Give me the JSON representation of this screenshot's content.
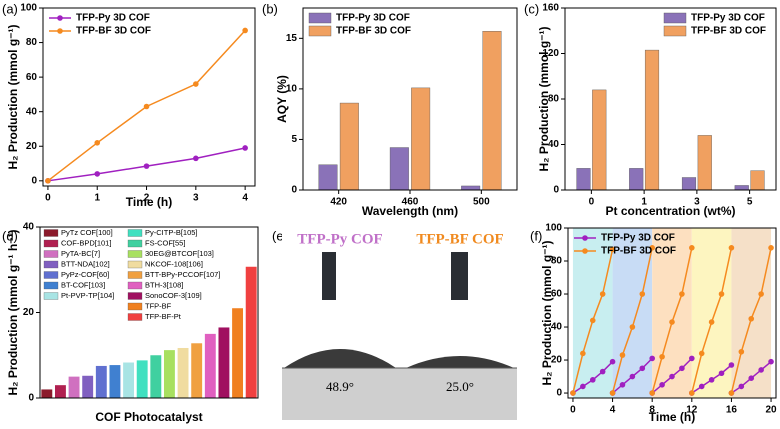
{
  "chart_data": [
    {
      "type": "line",
      "panel_label": "(a)",
      "x_label": "Time (h)",
      "y_label": "H₂ Production (mmol g⁻¹)",
      "x": [
        0,
        1,
        2,
        3,
        4
      ],
      "xlim": [
        -0.1,
        4.2
      ],
      "xticks": [
        0,
        1,
        2,
        3,
        4
      ],
      "ylim": [
        -3,
        100
      ],
      "yticks": [
        0,
        20,
        40,
        60,
        80,
        100
      ],
      "legend": "upper left",
      "series": [
        {
          "name": "TFP-Py 3D COF",
          "color": "#a020c0",
          "values": [
            0,
            4,
            8.5,
            13,
            19
          ]
        },
        {
          "name": "TFP-BF 3D COF",
          "color": "#f58a1f",
          "values": [
            0,
            22,
            43,
            56,
            87
          ]
        }
      ]
    },
    {
      "type": "bar",
      "panel_label": "(b)",
      "x_label": "Wavelength (nm)",
      "y_label": "AQY (%)",
      "categories": [
        "420",
        "460",
        "500"
      ],
      "ylim": [
        0,
        18
      ],
      "yticks": [
        0,
        5,
        10,
        15
      ],
      "legend": "upper left",
      "series": [
        {
          "name": "TFP-Py 3D COF",
          "color": "#8a72b8",
          "values": [
            2.5,
            4.2,
            0.4
          ]
        },
        {
          "name": "TFP-BF 3D COF",
          "color": "#f0a060",
          "values": [
            8.6,
            10.1,
            15.7
          ]
        }
      ]
    },
    {
      "type": "bar",
      "panel_label": "(c)",
      "x_label": "Pt concentration (wt%)",
      "y_label": "H₂ Production (mmol g⁻¹)",
      "categories": [
        "0",
        "1",
        "3",
        "5"
      ],
      "ylim": [
        0,
        160
      ],
      "yticks": [
        0,
        40,
        80,
        120,
        160
      ],
      "legend": "upper right",
      "series": [
        {
          "name": "TFP-Py 3D COF",
          "color": "#8a72b8",
          "values": [
            19,
            19,
            11,
            4
          ]
        },
        {
          "name": "TFP-BF 3D COF",
          "color": "#f0a060",
          "values": [
            88,
            123,
            48,
            17
          ]
        }
      ]
    },
    {
      "type": "bar",
      "panel_label": "(d)",
      "x_label": "COF Photocatalyst",
      "y_label": "H₂ Production (mmol g⁻¹ h⁻¹)",
      "categories": [
        "PyTz COF[100]",
        "COF-BPD[101]",
        "PyTA-BC[7]",
        "BTT-NDA[102]",
        "PyPz-COF[60]",
        "BT-COF[103]",
        "Pt-PVP-TP[104]",
        "Py-CITP-B[105]",
        "FS-COF[55]",
        "30EG@BTCOF[103]",
        "NKCOF-108[106]",
        "BTT-BPy-PCCOF[107]",
        "BTH-3[108]",
        "SonoCOF-3[109]",
        "TFP-BF",
        "TFP-BF-Pt"
      ],
      "values": [
        2,
        3,
        5,
        5.2,
        7.5,
        7.7,
        8.3,
        8.8,
        10,
        11.2,
        11.7,
        12.8,
        15,
        16.5,
        21,
        30.7
      ],
      "colors": [
        "#8b1a2b",
        "#b02050",
        "#d070c0",
        "#8060c0",
        "#6070d0",
        "#4080d0",
        "#a8e4e4",
        "#40e0c0",
        "#40d0a0",
        "#a8e060",
        "#f0dca0",
        "#f0a040",
        "#e060c0",
        "#a01060",
        "#f08020",
        "#f04040"
      ],
      "ylim": [
        0,
        40
      ],
      "yticks": [
        0,
        20,
        40
      ]
    },
    {
      "type": "line",
      "panel_label": "(f)",
      "x_label": "Time (h)",
      "y_label": "H₂ Production (mmol g⁻¹)",
      "x": [
        0,
        1,
        2,
        3,
        4,
        4,
        4,
        5,
        6,
        7,
        8,
        8,
        8,
        9,
        10,
        11,
        12,
        12,
        12,
        13,
        14,
        15,
        16,
        16,
        16,
        17,
        18,
        19,
        20
      ],
      "xlim": [
        -0.5,
        20.5
      ],
      "xticks": [
        0,
        4,
        8,
        12,
        16,
        20
      ],
      "ylim": [
        -3,
        100
      ],
      "yticks": [
        0,
        20,
        40,
        60,
        80,
        100
      ],
      "legend": "upper left",
      "background_bands": [
        "#c8eef0",
        "#c8dcf5",
        "#fde0c0",
        "#fdf5c0",
        "#f5e0c8"
      ],
      "series": [
        {
          "name": "TFP-Py 3D COF",
          "color": "#a020c0",
          "values": [
            0,
            4,
            8,
            13,
            19,
            null,
            0,
            5,
            10,
            15,
            21,
            null,
            0,
            5,
            10,
            15,
            21,
            null,
            0,
            4,
            8,
            12,
            17,
            null,
            0,
            4,
            9,
            14,
            19
          ]
        },
        {
          "name": "TFP-BF 3D COF",
          "color": "#f58a1f",
          "values": [
            0,
            24,
            44,
            60,
            87,
            null,
            0,
            23,
            40,
            60,
            88,
            null,
            0,
            22,
            43,
            60,
            88,
            null,
            0,
            24,
            43,
            60,
            88,
            null,
            0,
            25,
            45,
            60,
            88
          ]
        }
      ]
    }
  ],
  "photo": {
    "panel_label": "(e)",
    "items": [
      {
        "label": "TFP-Py COF",
        "angle": "48.9°"
      },
      {
        "label": "TFP-BF COF",
        "angle": "25.0°"
      }
    ]
  }
}
